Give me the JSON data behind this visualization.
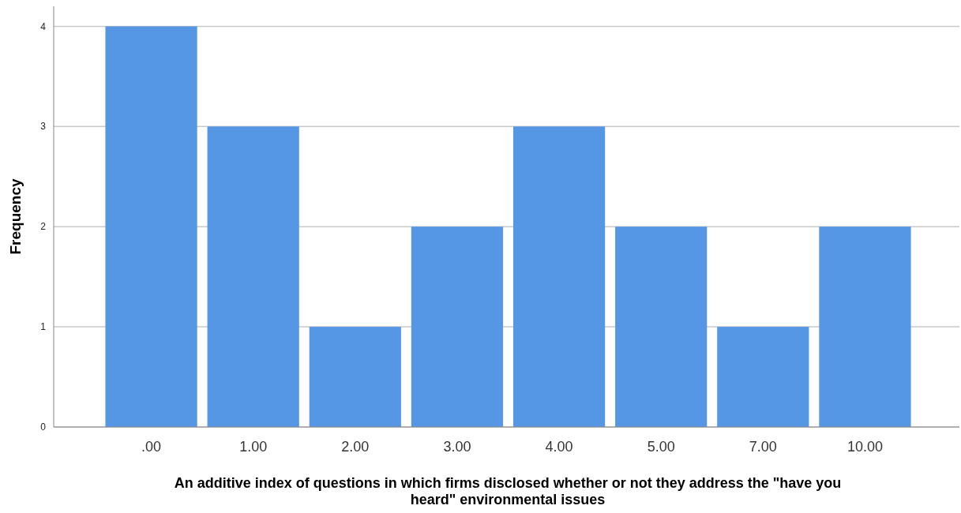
{
  "chart_data": {
    "type": "bar",
    "xlabel": "An additive index of questions in which firms disclosed whether or not they address the \"have you heard\" environmental issues",
    "ylabel": "Frequency",
    "categories": [
      ".00",
      "1.00",
      "2.00",
      "3.00",
      "4.00",
      "5.00",
      "7.00",
      "10.00"
    ],
    "values": [
      4,
      3,
      1,
      2,
      3,
      2,
      1,
      2
    ],
    "color": "#5596e5",
    "ylim": [
      0,
      4.2
    ],
    "yticks": [
      0,
      1,
      2,
      3,
      4
    ],
    "grid": "y"
  }
}
